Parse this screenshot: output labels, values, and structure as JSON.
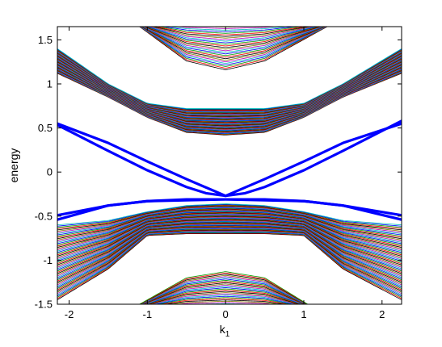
{
  "chart_data": {
    "type": "line",
    "title": "",
    "xlabel": "k",
    "xlabel_subscript": "1",
    "ylabel": "energy",
    "xlim": [
      -2.15,
      2.25
    ],
    "ylim": [
      -1.5,
      1.65
    ],
    "xticks": [
      -2,
      -1,
      0,
      1,
      2
    ],
    "yticks": [
      -1.5,
      -1,
      -0.5,
      0,
      0.5,
      1,
      1.5
    ],
    "xtick_labels": [
      "-2",
      "-1",
      "0",
      "1",
      "2"
    ],
    "ytick_labels": [
      "-1.5",
      "-1",
      "-0.5",
      "0",
      "0.5",
      "1",
      "1.5"
    ],
    "grid": false,
    "legend": "none",
    "bulk_band_colors": [
      "#000000",
      "#ff0000",
      "#00a000",
      "#0000ff",
      "#00bfbf",
      "#bf00bf",
      "#808000"
    ],
    "bulk_bands": {
      "upper_inner_edge": {
        "k": [
          -2.15,
          -1.5,
          -1.0,
          -0.5,
          0,
          0.5,
          1.0,
          1.5,
          2.25
        ],
        "e": [
          1.12,
          0.85,
          0.62,
          0.45,
          0.42,
          0.45,
          0.62,
          0.85,
          1.12
        ]
      },
      "upper_outer_edge": {
        "k": [
          -2.15,
          -1.5,
          -1.0,
          -0.5,
          0,
          0.5,
          1.0,
          1.5,
          2.25
        ],
        "e": [
          1.4,
          1.0,
          0.78,
          0.72,
          0.72,
          0.72,
          0.78,
          1.0,
          1.4
        ]
      },
      "upper_top_band_edge": {
        "k": [
          -1.1,
          -0.5,
          0,
          0.5,
          1.3
        ],
        "e": [
          1.65,
          1.26,
          1.16,
          1.26,
          1.65
        ]
      },
      "lower_inner_edge": {
        "k": [
          -2.15,
          -1.5,
          -1.0,
          -0.5,
          0,
          0.5,
          1.0,
          1.5,
          2.25
        ],
        "e": [
          -0.6,
          -0.55,
          -0.45,
          -0.38,
          -0.36,
          -0.38,
          -0.45,
          -0.55,
          -0.6
        ]
      },
      "lower_outer_edge": {
        "k": [
          -2.15,
          -1.5,
          -1.0,
          -0.5,
          0,
          0.5,
          1.0,
          1.5,
          2.25
        ],
        "e": [
          -1.45,
          -1.1,
          -0.72,
          -0.7,
          -0.7,
          -0.7,
          -0.72,
          -1.1,
          -1.45
        ]
      },
      "lower_bottom_band_edge": {
        "k": [
          -1.1,
          -0.5,
          0,
          0.5,
          1.05
        ],
        "e": [
          -1.5,
          -1.2,
          -1.13,
          -1.2,
          -1.5
        ]
      }
    },
    "series": [
      {
        "color": "#0000ff",
        "x": [
          -2.15,
          -1.5,
          -1.0,
          -0.5,
          0.0,
          0.25,
          0.5,
          1.0,
          1.5,
          2.25
        ],
        "y": [
          0.55,
          0.33,
          0.12,
          -0.08,
          -0.27,
          -0.24,
          -0.17,
          0.02,
          0.24,
          0.58
        ]
      },
      {
        "color": "#0000ff",
        "x": [
          -2.25,
          -1.5,
          -1.0,
          -0.5,
          -0.25,
          0.0,
          0.5,
          1.0,
          1.5,
          2.25
        ],
        "y": [
          0.58,
          0.24,
          0.02,
          -0.17,
          -0.24,
          -0.27,
          -0.08,
          0.12,
          0.33,
          0.55
        ]
      },
      {
        "color": "#0000ff",
        "x": [
          -2.15,
          -1.5,
          -1.0,
          -0.5,
          0.0,
          0.5,
          1.0,
          1.5,
          2.25
        ],
        "y": [
          -0.49,
          -0.38,
          -0.33,
          -0.31,
          -0.31,
          -0.32,
          -0.33,
          -0.38,
          -0.54
        ]
      },
      {
        "color": "#0000ff",
        "x": [
          -2.15,
          -1.5,
          -1.0,
          -0.5,
          0.0,
          0.5,
          1.0,
          1.5,
          2.25
        ],
        "y": [
          -0.54,
          -0.38,
          -0.33,
          -0.32,
          -0.31,
          -0.31,
          -0.33,
          -0.38,
          -0.49
        ]
      }
    ]
  }
}
